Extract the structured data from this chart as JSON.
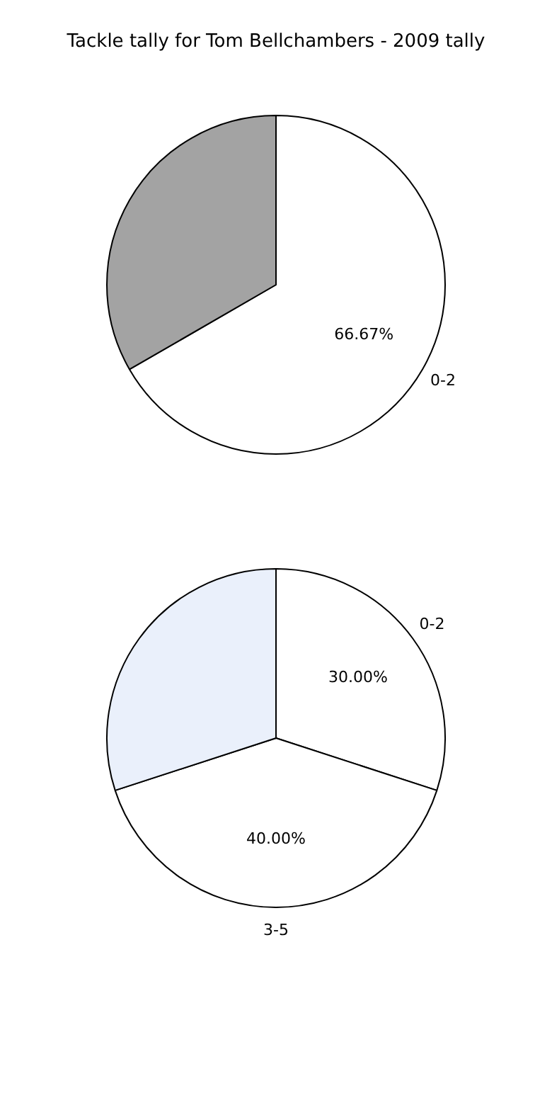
{
  "chart_data": [
    {
      "type": "pie",
      "title": "Tackle tally for Tom Bellchambers - 2009 tally",
      "categories": [
        "0-2",
        null
      ],
      "values": [
        66.67,
        33.33
      ],
      "value_labels": [
        "66.67%",
        null
      ],
      "colors": [
        "#ffffff",
        "#a3a3a3"
      ]
    },
    {
      "type": "pie",
      "categories": [
        "0-2",
        "3-5",
        null
      ],
      "values": [
        30,
        40,
        30
      ],
      "value_labels": [
        "30.00%",
        "40.00%",
        null
      ],
      "colors": [
        "#ffffff",
        "#ffffff",
        "#eaf0fb"
      ]
    }
  ]
}
